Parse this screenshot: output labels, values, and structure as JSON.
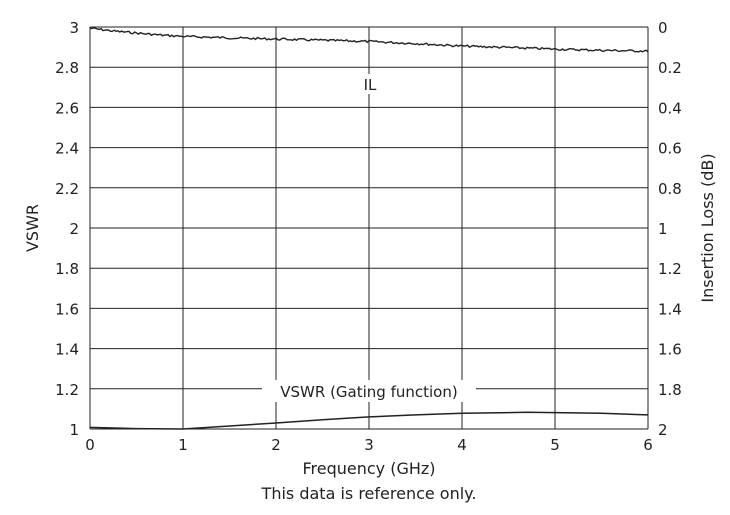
{
  "chart_data": {
    "type": "line",
    "xlabel": "Frequency (GHz)",
    "ylabel": "VSWR",
    "y2label": "Insertion Loss (dB)",
    "footnote": "This data is reference only.",
    "xlim": [
      0,
      6
    ],
    "ylim": [
      1,
      3
    ],
    "y2lim": [
      0,
      2
    ],
    "y2_inverted": true,
    "grid": true,
    "x_ticks": [
      "0",
      "1",
      "2",
      "3",
      "4",
      "5",
      "6"
    ],
    "y_ticks": [
      "1",
      "1.2",
      "1.4",
      "1.6",
      "1.8",
      "2",
      "2.2",
      "2.4",
      "2.6",
      "2.8",
      "3"
    ],
    "y2_ticks": [
      "0",
      "0.2",
      "0.4",
      "0.6",
      "0.8",
      "1",
      "1.2",
      "1.4",
      "1.6",
      "1.8",
      "2"
    ],
    "series": [
      {
        "name": "IL",
        "axis": "right",
        "color": "#222222",
        "x": [
          0,
          0.25,
          0.5,
          0.75,
          1,
          1.5,
          2,
          2.5,
          3,
          3.5,
          4,
          4.5,
          5,
          5.5,
          6
        ],
        "values": [
          0.006,
          0.02,
          0.03,
          0.04,
          0.047,
          0.054,
          0.06,
          0.066,
          0.072,
          0.082,
          0.095,
          0.102,
          0.11,
          0.116,
          0.12
        ]
      },
      {
        "name": "VSWR (Gating function)",
        "axis": "left",
        "color": "#222222",
        "x": [
          0,
          0.5,
          1,
          1.5,
          2,
          2.5,
          3,
          3.5,
          4,
          4.7,
          5.5,
          6
        ],
        "values": [
          1.008,
          1.002,
          1.0,
          1.015,
          1.03,
          1.046,
          1.06,
          1.07,
          1.078,
          1.083,
          1.078,
          1.07
        ]
      }
    ]
  }
}
